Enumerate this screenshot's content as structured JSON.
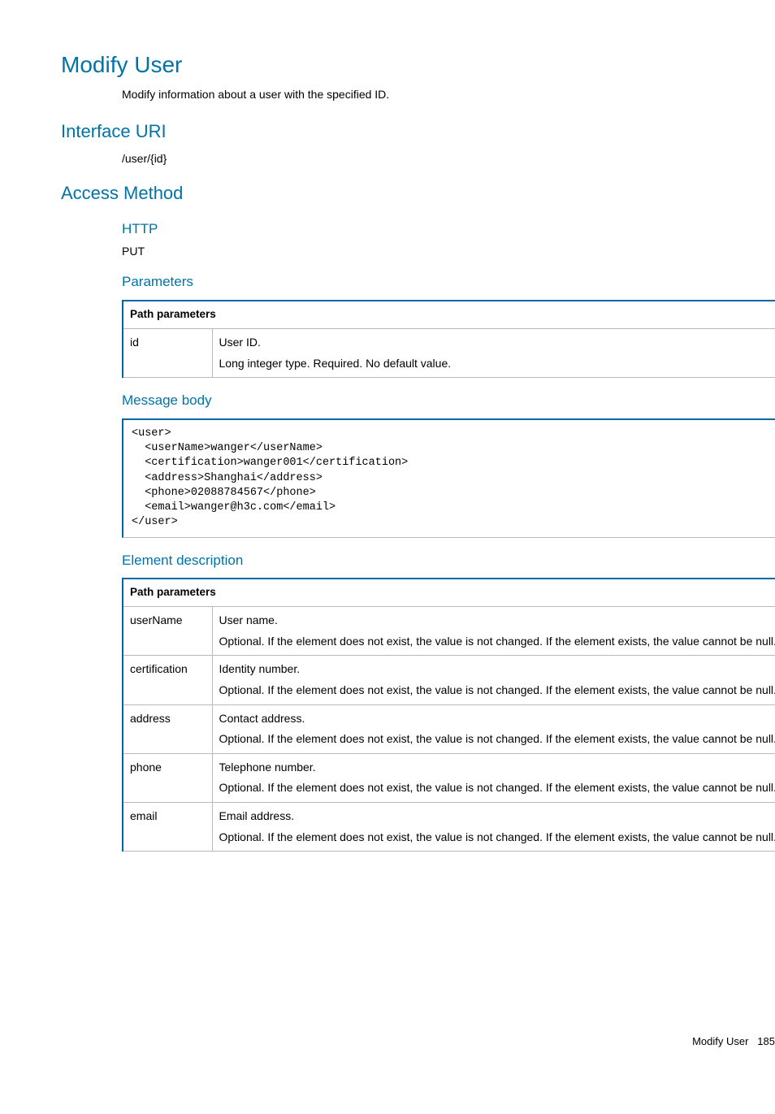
{
  "colors": {
    "heading": "#0073a8",
    "table_border_accent": "#0067a6",
    "table_border_light": "#b9b9b9",
    "text": "#000000",
    "background": "#ffffff"
  },
  "title": "Modify User",
  "intro": "Modify information about a user with the specified ID.",
  "sections": {
    "interface_uri": {
      "heading": "Interface URI",
      "value": "/user/{id}"
    },
    "access_method": {
      "heading": "Access Method",
      "http": {
        "label": "HTTP",
        "value": "PUT"
      },
      "parameters": {
        "label": "Parameters",
        "table": {
          "header": "Path parameters",
          "rows": [
            {
              "name": "id",
              "desc_line1": "User ID.",
              "desc_line2": "Long integer type. Required. No default value."
            }
          ]
        }
      },
      "message_body": {
        "label": "Message body",
        "code": "<user>\n  <userName>wanger</userName>\n  <certification>wanger001</certification>\n  <address>Shanghai</address>\n  <phone>02088784567</phone>\n  <email>wanger@h3c.com</email>\n</user>"
      },
      "element_description": {
        "label": "Element description",
        "table": {
          "header": "Path parameters",
          "rows": [
            {
              "name": "userName",
              "desc_line1": "User name.",
              "desc_line2": "Optional. If the element does not exist, the value is not changed. If the element exists, the value cannot be null."
            },
            {
              "name": "certification",
              "desc_line1": "Identity number.",
              "desc_line2": "Optional. If the element does not exist, the value is not changed. If the element exists, the value cannot be null."
            },
            {
              "name": "address",
              "desc_line1": "Contact address.",
              "desc_line2": "Optional. If the element does not exist, the value is not changed. If the element exists, the value cannot be null."
            },
            {
              "name": "phone",
              "desc_line1": "Telephone number.",
              "desc_line2": "Optional. If the element does not exist, the value is not changed. If the element exists, the value cannot be null."
            },
            {
              "name": "email",
              "desc_line1": "Email address.",
              "desc_line2": "Optional. If the element does not exist, the value is not changed. If the element exists, the value cannot be null."
            }
          ]
        }
      }
    }
  },
  "footer": {
    "label": "Modify User",
    "page": "185"
  }
}
